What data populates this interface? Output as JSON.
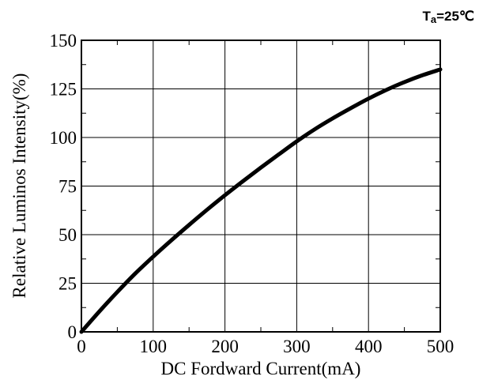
{
  "chart_data": {
    "type": "line",
    "title": "",
    "condition": {
      "symbol": "T",
      "subscript": "a",
      "value": "=25",
      "unit": "℃"
    },
    "xlabel": "DC Fordward Current(mA)",
    "ylabel": "Relative Luminos Intensity(%)",
    "xlim": [
      0,
      500
    ],
    "ylim": [
      0,
      150
    ],
    "x_ticks": [
      0,
      100,
      200,
      300,
      400,
      500
    ],
    "y_ticks": [
      0,
      25,
      50,
      75,
      100,
      125,
      150
    ],
    "x_tick_labels": [
      "0",
      "100",
      "200",
      "300",
      "400",
      "500"
    ],
    "y_tick_labels": [
      "0",
      "25",
      "50",
      "75",
      "100",
      "125",
      "150"
    ],
    "grid": true,
    "legend": "none",
    "series": [
      {
        "color": "#000000",
        "x": [
          0,
          25,
          50,
          75,
          100,
          125,
          150,
          175,
          200,
          225,
          250,
          275,
          300,
          325,
          350,
          375,
          400,
          425,
          450,
          475,
          500
        ],
        "y": [
          0,
          10.5,
          20.5,
          30,
          38.7,
          47,
          55,
          62.8,
          70.3,
          77.5,
          84.5,
          91.3,
          98,
          104.2,
          109.8,
          115,
          120,
          124.5,
          128.5,
          132,
          135
        ]
      }
    ]
  }
}
